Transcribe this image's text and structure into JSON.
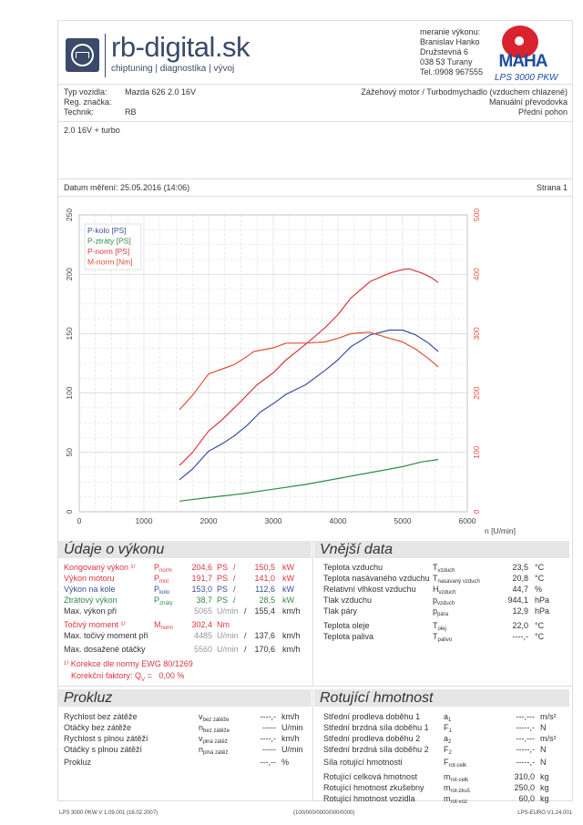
{
  "header": {
    "brand": "rb-digital.sk",
    "tagline": "chiptuning | diagnostika | vývoj",
    "contact": [
      "meranie výkonu:",
      "Branislav Hanko",
      "Družstevná 6",
      "038 53 Turany",
      "Tel.:0908 967555"
    ],
    "maha_model": "LPS 3000 PKW",
    "maha_logo_text": "MAHA"
  },
  "vehicle": {
    "type_label": "Typ vozidla:",
    "type_value": "Mazda 626 2.0 16V",
    "reg_label": "Reg. značka:",
    "reg_value": "",
    "tech_label": "Technik:",
    "tech_value": "RB",
    "engine": "Zážehový motor / Turbodmychadlo (vzduchem chlazené)",
    "gearbox": "Manuální převodovka",
    "drive": "Přední pohon",
    "note": "2.0 16V + turbo"
  },
  "date_label": "Datum měření: 25.05.2016 (14:06)",
  "page_label": "Strana 1",
  "chart_data": {
    "type": "line",
    "xlabel": "n [U/min]",
    "xlim": [
      0,
      6000
    ],
    "xticks": [
      0,
      1000,
      2000,
      3000,
      4000,
      5000,
      6000
    ],
    "ylim_left": [
      0,
      250
    ],
    "yticks_left": [
      0,
      50,
      100,
      150,
      200,
      250
    ],
    "ylim_right": [
      0,
      500
    ],
    "yticks_right": [
      0,
      100,
      200,
      300,
      400,
      500
    ],
    "grid": true,
    "legend": "top-left",
    "series": [
      {
        "name": "P-kolo [PS]",
        "axis": "left",
        "color": "#3b4e9a",
        "x": [
          1550,
          1750,
          2000,
          2200,
          2400,
          2600,
          2800,
          3000,
          3200,
          3500,
          3800,
          4000,
          4200,
          4500,
          4800,
          5000,
          5200,
          5400,
          5550
        ],
        "y": [
          27,
          36,
          51,
          57,
          64,
          73,
          84,
          91,
          99,
          107,
          119,
          128,
          139,
          149,
          153,
          153,
          149,
          142,
          135
        ]
      },
      {
        "name": "P-ztráty [PS]",
        "axis": "left",
        "color": "#2e8b4a",
        "x": [
          1550,
          2000,
          2500,
          3000,
          3500,
          4000,
          4500,
          4800,
          5000,
          5300,
          5550
        ],
        "y": [
          9,
          12,
          15,
          19,
          23,
          28,
          33,
          36,
          38,
          42,
          44
        ]
      },
      {
        "name": "P-norm [PS]",
        "axis": "left",
        "color": "#d9363e",
        "x": [
          1550,
          1750,
          2000,
          2200,
          2500,
          2750,
          3000,
          3200,
          3500,
          3800,
          4000,
          4200,
          4500,
          4800,
          5000,
          5100,
          5300,
          5450,
          5550
        ],
        "y": [
          39,
          50,
          68,
          77,
          93,
          107,
          117,
          128,
          141,
          155,
          166,
          180,
          194,
          201,
          204,
          204.6,
          201,
          197,
          193
        ]
      },
      {
        "name": "M-norm [Nm]",
        "axis": "right",
        "color": "#e0503a",
        "x": [
          1550,
          1750,
          2000,
          2200,
          2400,
          2600,
          2700,
          3000,
          3200,
          3500,
          3800,
          4000,
          4200,
          4485,
          4800,
          5000,
          5200,
          5400,
          5550
        ],
        "y": [
          172,
          196,
          232,
          240,
          248,
          262,
          270,
          276,
          284,
          284,
          286,
          292,
          300,
          302.4,
          292,
          286,
          274,
          258,
          244
        ]
      }
    ]
  },
  "perf": {
    "title": "Údaje o výkonu",
    "rows": [
      {
        "label": "Korigovaný výkon ¹⁾",
        "sym": "P",
        "sub": "norm",
        "v1": "204,6",
        "u1": "PS",
        "sep": "/",
        "v2": "150,5",
        "u2": "kW",
        "color": "#d9363e"
      },
      {
        "label": "Výkon motoru",
        "sym": "P",
        "sub": "mot",
        "v1": "191,7",
        "u1": "PS",
        "sep": "/",
        "v2": "141,0",
        "u2": "kW",
        "color": "#d9363e"
      },
      {
        "label": "Výkon na kole",
        "sym": "P",
        "sub": "kolo",
        "v1": "153,0",
        "u1": "PS",
        "sep": "/",
        "v2": "112,6",
        "u2": "kW",
        "color": "#3b4e9a"
      },
      {
        "label": "Ztrátový výkon",
        "sym": "P",
        "sub": "ztráty",
        "v1": "38,7",
        "u1": "PS",
        "sep": "/",
        "v2": "28,5",
        "u2": "kW",
        "color": "#2e8b4a"
      },
      {
        "label": "Max. výkon při",
        "sym": "",
        "sub": "",
        "v1": "5065",
        "u1": "U/min",
        "sep": "/",
        "v2": "155,4",
        "u2": "km/h",
        "color": "#333",
        "gray": true
      },
      {
        "label": "Točivý moment ¹⁾",
        "sym": "M",
        "sub": "norm",
        "v1": "302,4",
        "u1": "Nm",
        "sep": "",
        "v2": "",
        "u2": "",
        "color": "#d9363e"
      },
      {
        "label": "Max. točivý moment při",
        "sym": "",
        "sub": "",
        "v1": "4485",
        "u1": "U/min",
        "sep": "/",
        "v2": "137,6",
        "u2": "km/h",
        "color": "#333",
        "gray": true
      },
      {
        "label": "Max. dosažené otáčky",
        "sym": "",
        "sub": "",
        "v1": "5560",
        "u1": "U/min",
        "sep": "/",
        "v2": "170,6",
        "u2": "km/h",
        "color": "#333",
        "gray": true
      }
    ],
    "note1": "¹⁾ Korekce dle normy EWG 80/1269",
    "note2": "Korekční faktory: Q",
    "note2_sub": "V",
    "note2_val": "=   0,00 %"
  },
  "ext": {
    "title": "Vnější data",
    "rows": [
      {
        "label": "Teplota vzduchu",
        "sym": "T",
        "sub": "vzduch",
        "v": "23,5",
        "u": "°C"
      },
      {
        "label": "Teplota nasávaného vzduchu",
        "sym": "T",
        "sub": "nasávaný vzduch",
        "v": "20,8",
        "u": "°C"
      },
      {
        "label": "Relativní vlhkost vzduchu",
        "sym": "H",
        "sub": "vzduch",
        "v": "44,7",
        "u": "%"
      },
      {
        "label": "Tlak vzduchu",
        "sym": "p",
        "sub": "vzduch",
        "v": "944,1",
        "u": "hPa"
      },
      {
        "label": "Tlak páry",
        "sym": "p",
        "sub": "pára",
        "v": "12,9",
        "u": "hPa"
      },
      {
        "label": "Teplota oleje",
        "sym": "T",
        "sub": "olej",
        "v": "22,0",
        "u": "°C"
      },
      {
        "label": "Teplota paliva",
        "sym": "T",
        "sub": "palivo",
        "v": "----,-",
        "u": "°C"
      }
    ]
  },
  "slip": {
    "title": "Prokluz",
    "rows": [
      {
        "label": "Rychlost bez zátěže",
        "sym": "v",
        "sub": "bez zátěže",
        "v": "----,-",
        "u": "km/h"
      },
      {
        "label": "Otáčky bez zátěže",
        "sym": "n",
        "sub": "bez zátěže",
        "v": "-----",
        "u": "U/min"
      },
      {
        "label": "Rychlost s plnou zátěží",
        "sym": "v",
        "sub": "plná zátěž",
        "v": "----,-",
        "u": "km/h"
      },
      {
        "label": "Otáčky s plnou zátěží",
        "sym": "n",
        "sub": "plná zátěž",
        "v": "-----",
        "u": "U/min"
      },
      {
        "label": "Prokluz",
        "sym": "",
        "sub": "",
        "v": "---,--",
        "u": "%"
      }
    ]
  },
  "rot": {
    "title": "Rotující hmotnost",
    "rows": [
      {
        "label": "Střední prodleva doběhu 1",
        "sym": "a",
        "sub": "1",
        "v": "---,---",
        "u": "m/s²"
      },
      {
        "label": "Střední brzdná síla doběhu 1",
        "sym": "F",
        "sub": "1",
        "v": "-----,-",
        "u": "N"
      },
      {
        "label": "Střední prodleva doběhu 2",
        "sym": "a",
        "sub": "2",
        "v": "---,---",
        "u": "m/s²"
      },
      {
        "label": "Střední brzdná síla doběhu 2",
        "sym": "F",
        "sub": "2",
        "v": "-----,-",
        "u": "N"
      },
      {
        "label": "Síla rotující hmotnosti",
        "sym": "F",
        "sub": "rot-celk",
        "v": "-----,-",
        "u": "N"
      },
      {
        "label": "Rotující celková hmotnost",
        "sym": "m",
        "sub": "rot-celk",
        "v": "310,0",
        "u": "kg"
      },
      {
        "label": "Rotující hmotnost zkušebny",
        "sym": "m",
        "sub": "rot-zkuš",
        "v": "250,0",
        "u": "kg"
      },
      {
        "label": "Rotující hmotnost vozidla",
        "sym": "m",
        "sub": "rot-voz",
        "v": "60,0",
        "u": "kg"
      }
    ]
  },
  "footer": {
    "left": "LPS 3000 PKW V 1.09.001 (16.02.2007)",
    "center": "(100/000/0000/000/0000)",
    "right": "LPS-EURO V1.24.001"
  }
}
